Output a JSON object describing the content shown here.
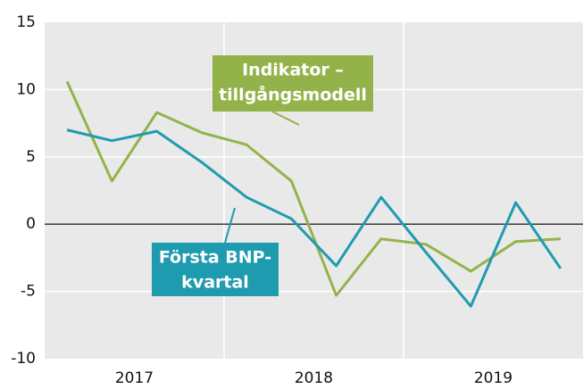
{
  "chart_data": {
    "type": "line",
    "categories": [
      "2017",
      null,
      null,
      null,
      "2018",
      null,
      null,
      null,
      "2019",
      null,
      null,
      null
    ],
    "series": [
      {
        "label_lines": [
          "Indikator –",
          "tillgångsmodell"
        ],
        "color": "#93b34a",
        "values": [
          10.6,
          3.2,
          8.3,
          6.8,
          5.9,
          3.2,
          -5.3,
          -1.1,
          -1.5,
          -3.5,
          -1.3,
          -1.1
        ]
      },
      {
        "label_lines": [
          "Första BNP-",
          "kvartal"
        ],
        "color": "#1f9bb0",
        "values": [
          7.0,
          6.2,
          6.9,
          4.6,
          2.0,
          0.4,
          -3.1,
          2.0,
          -2.1,
          -6.1,
          1.6,
          -3.3
        ]
      }
    ],
    "ylim": [
      -10,
      15
    ],
    "yticks": [
      15,
      10,
      5,
      0,
      -5,
      -10
    ],
    "grid": true
  }
}
